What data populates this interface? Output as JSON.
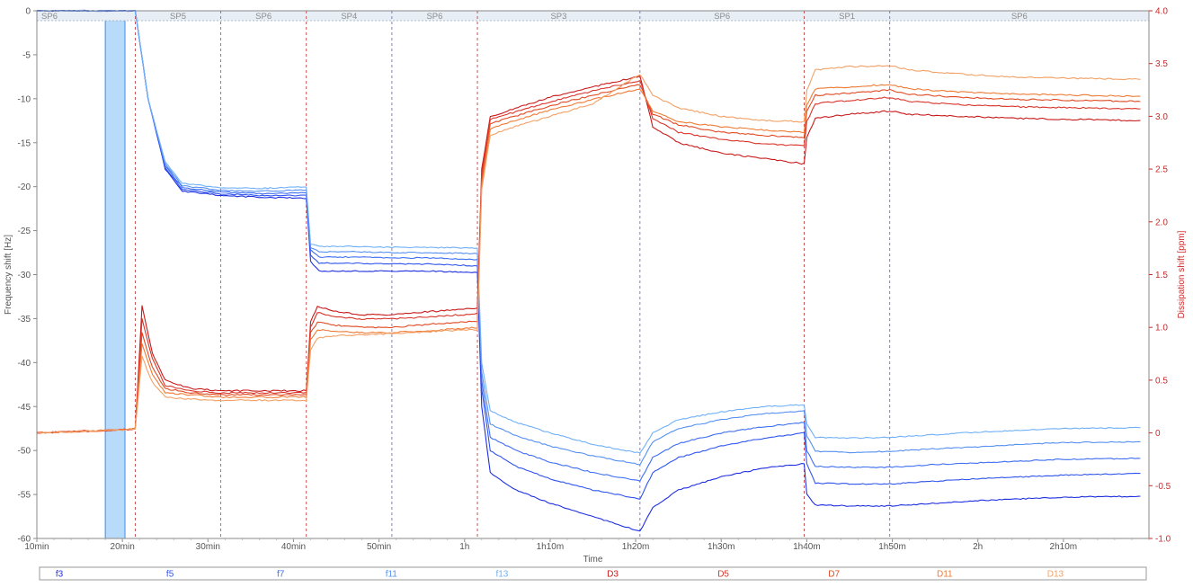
{
  "chart_data": {
    "type": "line",
    "xlabel": "Time",
    "ylabel_left": "Frequency shift [Hz]",
    "ylabel_right": "Dissipation shift [ppm]",
    "x_unit": "minutes",
    "xlim": [
      10,
      140
    ],
    "ylim_left": [
      -60,
      0
    ],
    "ylim_right": [
      -1.0,
      4.0
    ],
    "x_ticks": [
      {
        "value": 10,
        "label": "10min"
      },
      {
        "value": 20,
        "label": "20min"
      },
      {
        "value": 30,
        "label": "30min"
      },
      {
        "value": 40,
        "label": "40min"
      },
      {
        "value": 50,
        "label": "50min"
      },
      {
        "value": 60,
        "label": "1h"
      },
      {
        "value": 70,
        "label": "1h10m"
      },
      {
        "value": 80,
        "label": "1h20m"
      },
      {
        "value": 90,
        "label": "1h30m"
      },
      {
        "value": 100,
        "label": "1h40m"
      },
      {
        "value": 110,
        "label": "1h50m"
      },
      {
        "value": 120,
        "label": "2h"
      },
      {
        "value": 130,
        "label": "2h10m"
      }
    ],
    "y_ticks_left": [
      "0",
      "-5",
      "-10",
      "-15",
      "-20",
      "-25",
      "-30",
      "-35",
      "-40",
      "-45",
      "-50",
      "-55",
      "-60"
    ],
    "y_ticks_right": [
      "4.0",
      "3.5",
      "3.0",
      "2.5",
      "2.0",
      "1.5",
      "1.0",
      "0.5",
      "0",
      "-0.5",
      "-1.0"
    ],
    "highlight_band": [
      18,
      20.3
    ],
    "segments": [
      {
        "label": "SP6",
        "start": 10,
        "end": 21.5
      },
      {
        "label": "SP5",
        "start": 21.5,
        "end": 31.5
      },
      {
        "label": "SP6",
        "start": 31.5,
        "end": 41.5
      },
      {
        "label": "SP4",
        "start": 41.5,
        "end": 51.5
      },
      {
        "label": "SP6",
        "start": 51.5,
        "end": 61.5
      },
      {
        "label": "SP3",
        "start": 61.5,
        "end": 80.5
      },
      {
        "label": "SP6",
        "start": 80.5,
        "end": 99.7
      },
      {
        "label": "SP1",
        "start": 99.7,
        "end": 109.7
      },
      {
        "label": "SP6",
        "start": 109.7,
        "end": 140
      }
    ],
    "legend": [
      "f3",
      "f5",
      "f7",
      "f11",
      "f13",
      "D3",
      "D5",
      "D7",
      "D11",
      "D13"
    ],
    "legend_position": "bottom",
    "grid": false,
    "series": [
      {
        "name": "f3",
        "axis": "left",
        "color": "#1f2fe0",
        "x": [
          10,
          20,
          21.5,
          23,
          25,
          27,
          31.5,
          36,
          41.5,
          42,
          43,
          47,
          51.5,
          56,
          61.5,
          62,
          63,
          66,
          70,
          75,
          80.5,
          82,
          85,
          90,
          95,
          99.7,
          100,
          101,
          105,
          109.7,
          115,
          120,
          125,
          130,
          139
        ],
        "y": [
          0,
          0,
          0,
          -10,
          -18,
          -20.5,
          -21.0,
          -21.2,
          -21.3,
          -28.5,
          -29.6,
          -29.6,
          -29.6,
          -29.6,
          -29.8,
          -45,
          -52.5,
          -54.5,
          -56.0,
          -57.5,
          -59.2,
          -56.5,
          -54.5,
          -53.0,
          -52.0,
          -51.5,
          -55,
          -56.2,
          -56.3,
          -56.3,
          -56.0,
          -55.7,
          -55.5,
          -55.3,
          -55.2
        ]
      },
      {
        "name": "f5",
        "axis": "left",
        "color": "#2f55ee",
        "x": [
          10,
          20,
          21.5,
          23,
          25,
          27,
          31.5,
          36,
          41.5,
          42,
          43,
          47,
          51.5,
          56,
          61.5,
          62,
          63,
          66,
          70,
          75,
          80.5,
          82,
          85,
          90,
          95,
          99.7,
          100,
          101,
          105,
          109.7,
          115,
          120,
          125,
          130,
          139
        ],
        "y": [
          0,
          0,
          0,
          -10,
          -17.8,
          -20.3,
          -20.8,
          -21.0,
          -21.0,
          -27.8,
          -28.7,
          -28.7,
          -28.8,
          -28.8,
          -29.0,
          -43,
          -50.0,
          -51.8,
          -53.2,
          -54.5,
          -55.5,
          -52.5,
          -50.8,
          -49.5,
          -48.6,
          -48.0,
          -51.5,
          -53.7,
          -53.8,
          -53.8,
          -53.5,
          -53.2,
          -53.0,
          -52.8,
          -52.6
        ]
      },
      {
        "name": "f7",
        "axis": "left",
        "color": "#3f6ff2",
        "x": [
          10,
          20,
          21.5,
          23,
          25,
          27,
          31.5,
          36,
          41.5,
          42,
          43,
          47,
          51.5,
          56,
          61.5,
          62,
          63,
          66,
          70,
          75,
          80.5,
          82,
          85,
          90,
          95,
          99.7,
          100,
          101,
          105,
          109.7,
          115,
          120,
          125,
          130,
          139
        ],
        "y": [
          0,
          0,
          0,
          -10,
          -17.6,
          -20.1,
          -20.6,
          -20.8,
          -20.7,
          -27.2,
          -28.0,
          -28.0,
          -28.1,
          -28.1,
          -28.3,
          -42,
          -48.5,
          -50.0,
          -51.3,
          -52.5,
          -53.5,
          -50.8,
          -49.2,
          -48.0,
          -47.3,
          -46.8,
          -50.0,
          -51.8,
          -51.9,
          -51.9,
          -51.6,
          -51.4,
          -51.2,
          -51.0,
          -50.9
        ]
      },
      {
        "name": "f11",
        "axis": "left",
        "color": "#5590f2",
        "x": [
          10,
          20,
          21.5,
          23,
          25,
          27,
          31.5,
          36,
          41.5,
          42,
          43,
          47,
          51.5,
          56,
          61.5,
          62,
          63,
          66,
          70,
          75,
          80.5,
          82,
          85,
          90,
          95,
          99.7,
          100,
          101,
          105,
          109.7,
          115,
          120,
          125,
          130,
          139
        ],
        "y": [
          0,
          0,
          0,
          -10,
          -17.4,
          -19.9,
          -20.4,
          -20.5,
          -20.4,
          -26.9,
          -27.4,
          -27.4,
          -27.5,
          -27.5,
          -27.6,
          -41,
          -47.0,
          -48.3,
          -49.5,
          -50.6,
          -51.6,
          -49.0,
          -47.5,
          -46.5,
          -45.8,
          -45.5,
          -48.3,
          -50.1,
          -50.2,
          -50.1,
          -49.8,
          -49.6,
          -49.3,
          -49.1,
          -49.0
        ]
      },
      {
        "name": "f13",
        "axis": "left",
        "color": "#6fb0f8",
        "x": [
          10,
          20,
          21.5,
          23,
          25,
          27,
          31.5,
          36,
          41.5,
          42,
          43,
          47,
          51.5,
          56,
          61.5,
          62,
          63,
          66,
          70,
          75,
          80.5,
          82,
          85,
          90,
          95,
          99.7,
          100,
          101,
          105,
          109.7,
          115,
          120,
          125,
          130,
          139
        ],
        "y": [
          0,
          0,
          0,
          -10,
          -17.2,
          -19.6,
          -20.1,
          -20.2,
          -20.0,
          -26.5,
          -26.8,
          -26.8,
          -26.9,
          -26.9,
          -27.0,
          -40,
          -45.5,
          -46.8,
          -48.0,
          -49.3,
          -50.3,
          -48.0,
          -46.5,
          -45.6,
          -45.0,
          -44.8,
          -47.0,
          -48.5,
          -48.6,
          -48.5,
          -48.2,
          -47.9,
          -47.7,
          -47.5,
          -47.4
        ]
      },
      {
        "name": "D3",
        "axis": "right",
        "color": "#c81a1a",
        "x": [
          10,
          20,
          21.5,
          22.3,
          23.5,
          25,
          28,
          31.5,
          36,
          41.5,
          42,
          42.8,
          45,
          48,
          51.5,
          56,
          61.5,
          62,
          63,
          65,
          70,
          75,
          80.5,
          82,
          85,
          90,
          95,
          99.7,
          100,
          101,
          105,
          109.7,
          112,
          118,
          125,
          139
        ],
        "y": [
          0,
          0.03,
          0.04,
          1.2,
          0.75,
          0.5,
          0.42,
          0.4,
          0.4,
          0.4,
          1.05,
          1.2,
          1.15,
          1.12,
          1.12,
          1.15,
          1.18,
          2.5,
          3.0,
          3.05,
          3.18,
          3.28,
          3.38,
          2.9,
          2.75,
          2.65,
          2.6,
          2.55,
          2.8,
          2.98,
          3.02,
          3.05,
          3.02,
          3.0,
          2.98,
          2.96
        ]
      },
      {
        "name": "D5",
        "axis": "right",
        "color": "#d8352a",
        "x": [
          10,
          20,
          21.5,
          22.3,
          23.5,
          25,
          28,
          31.5,
          36,
          41.5,
          42,
          42.8,
          45,
          48,
          51.5,
          56,
          61.5,
          62,
          63,
          65,
          70,
          75,
          80.5,
          82,
          85,
          90,
          95,
          99.7,
          100,
          101,
          105,
          109.7,
          112,
          118,
          125,
          139
        ],
        "y": [
          0,
          0.03,
          0.04,
          1.08,
          0.7,
          0.45,
          0.4,
          0.38,
          0.38,
          0.38,
          1.0,
          1.14,
          1.1,
          1.08,
          1.08,
          1.1,
          1.13,
          2.45,
          2.97,
          3.02,
          3.14,
          3.24,
          3.34,
          2.98,
          2.85,
          2.78,
          2.74,
          2.72,
          2.95,
          3.12,
          3.15,
          3.18,
          3.14,
          3.11,
          3.09,
          3.07
        ]
      },
      {
        "name": "D7",
        "axis": "right",
        "color": "#e04a22",
        "x": [
          10,
          20,
          21.5,
          22.3,
          23.5,
          25,
          28,
          31.5,
          36,
          41.5,
          42,
          42.8,
          45,
          48,
          51.5,
          56,
          61.5,
          62,
          63,
          65,
          70,
          75,
          80.5,
          82,
          85,
          90,
          95,
          99.7,
          100,
          101,
          105,
          109.7,
          112,
          118,
          125,
          139
        ],
        "y": [
          0,
          0.03,
          0.04,
          0.95,
          0.62,
          0.42,
          0.38,
          0.36,
          0.36,
          0.36,
          0.95,
          1.05,
          1.02,
          1.0,
          1.0,
          1.03,
          1.06,
          2.4,
          2.93,
          2.98,
          3.1,
          3.2,
          3.3,
          3.02,
          2.92,
          2.85,
          2.82,
          2.8,
          3.05,
          3.2,
          3.22,
          3.25,
          3.21,
          3.18,
          3.16,
          3.14
        ]
      },
      {
        "name": "D11",
        "axis": "right",
        "color": "#ee7a34",
        "x": [
          10,
          20,
          21.5,
          22.3,
          23.5,
          25,
          28,
          31.5,
          36,
          41.5,
          42,
          42.8,
          45,
          48,
          51.5,
          56,
          61.5,
          62,
          63,
          65,
          70,
          75,
          80.5,
          82,
          85,
          90,
          95,
          99.7,
          100,
          101,
          105,
          109.7,
          112,
          118,
          125,
          139
        ],
        "y": [
          0,
          0.03,
          0.04,
          0.85,
          0.55,
          0.38,
          0.36,
          0.34,
          0.34,
          0.34,
          0.88,
          0.98,
          0.96,
          0.95,
          0.95,
          0.97,
          1.0,
          2.35,
          2.88,
          2.94,
          3.06,
          3.16,
          3.26,
          3.05,
          2.95,
          2.9,
          2.87,
          2.85,
          3.1,
          3.26,
          3.28,
          3.3,
          3.26,
          3.23,
          3.21,
          3.19
        ]
      },
      {
        "name": "D13",
        "axis": "right",
        "color": "#f2a065",
        "x": [
          10,
          20,
          21.5,
          22.3,
          23.5,
          25,
          28,
          31.5,
          36,
          41.5,
          42,
          42.8,
          45,
          48,
          51.5,
          56,
          61.5,
          62,
          63,
          65,
          70,
          75,
          80.5,
          82,
          85,
          90,
          95,
          99.7,
          100,
          101,
          105,
          109.7,
          112,
          118,
          125,
          139
        ],
        "y": [
          0,
          0.03,
          0.04,
          0.72,
          0.48,
          0.34,
          0.32,
          0.31,
          0.31,
          0.31,
          0.78,
          0.9,
          0.92,
          0.93,
          0.94,
          0.96,
          0.98,
          2.3,
          2.82,
          2.88,
          3.0,
          3.12,
          3.4,
          3.2,
          3.08,
          3.0,
          2.96,
          2.95,
          3.25,
          3.44,
          3.47,
          3.48,
          3.44,
          3.4,
          3.37,
          3.35
        ]
      }
    ]
  }
}
